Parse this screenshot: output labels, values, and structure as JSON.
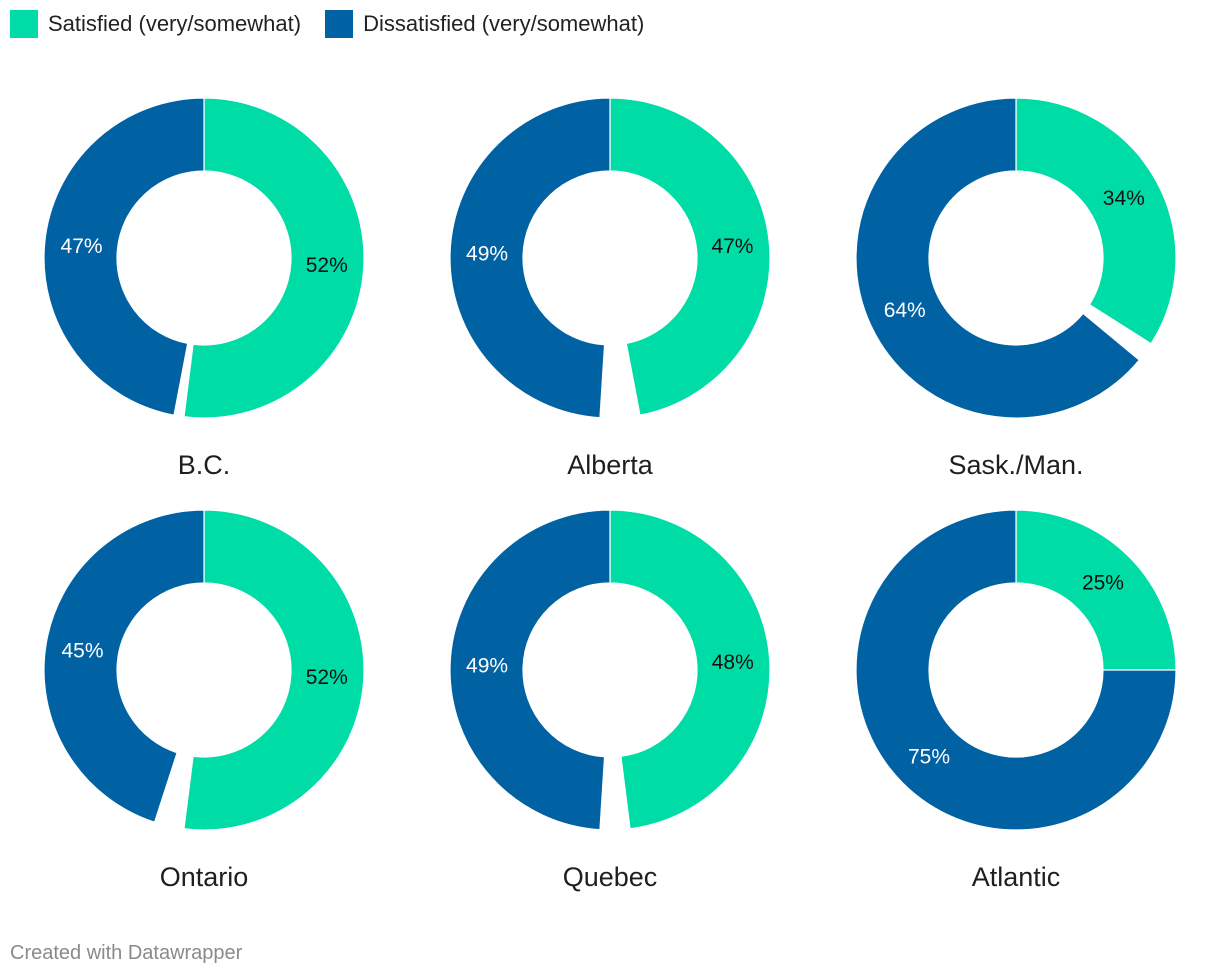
{
  "colors": {
    "satisfied": "#00dca6",
    "dissatisfied": "#0061a3",
    "label_on_satisfied": "#111111",
    "label_on_dissatisfied": "#ffffff"
  },
  "legend": {
    "satisfied": "Satisfied (very/somewhat)",
    "dissatisfied": "Dissatisfied (very/somewhat)"
  },
  "credit": "Created with Datawrapper",
  "chart_data": [
    {
      "type": "pie",
      "title": "B.C.",
      "series": [
        {
          "name": "Satisfied (very/somewhat)",
          "value": 52,
          "label": "52%"
        },
        {
          "name": "Dissatisfied (very/somewhat)",
          "value": 47,
          "label": "47%"
        }
      ]
    },
    {
      "type": "pie",
      "title": "Alberta",
      "series": [
        {
          "name": "Satisfied (very/somewhat)",
          "value": 47,
          "label": "47%"
        },
        {
          "name": "Dissatisfied (very/somewhat)",
          "value": 49,
          "label": "49%"
        }
      ]
    },
    {
      "type": "pie",
      "title": "Sask./Man.",
      "series": [
        {
          "name": "Satisfied (very/somewhat)",
          "value": 34,
          "label": "34%"
        },
        {
          "name": "Dissatisfied (very/somewhat)",
          "value": 64,
          "label": "64%"
        }
      ]
    },
    {
      "type": "pie",
      "title": "Ontario",
      "series": [
        {
          "name": "Satisfied (very/somewhat)",
          "value": 52,
          "label": "52%"
        },
        {
          "name": "Dissatisfied (very/somewhat)",
          "value": 45,
          "label": "45%"
        }
      ]
    },
    {
      "type": "pie",
      "title": "Quebec",
      "series": [
        {
          "name": "Satisfied (very/somewhat)",
          "value": 48,
          "label": "48%"
        },
        {
          "name": "Dissatisfied (very/somewhat)",
          "value": 49,
          "label": "49%"
        }
      ]
    },
    {
      "type": "pie",
      "title": "Atlantic",
      "series": [
        {
          "name": "Satisfied (very/somewhat)",
          "value": 25,
          "label": "25%"
        },
        {
          "name": "Dissatisfied (very/somewhat)",
          "value": 75,
          "label": "75%"
        }
      ]
    }
  ]
}
